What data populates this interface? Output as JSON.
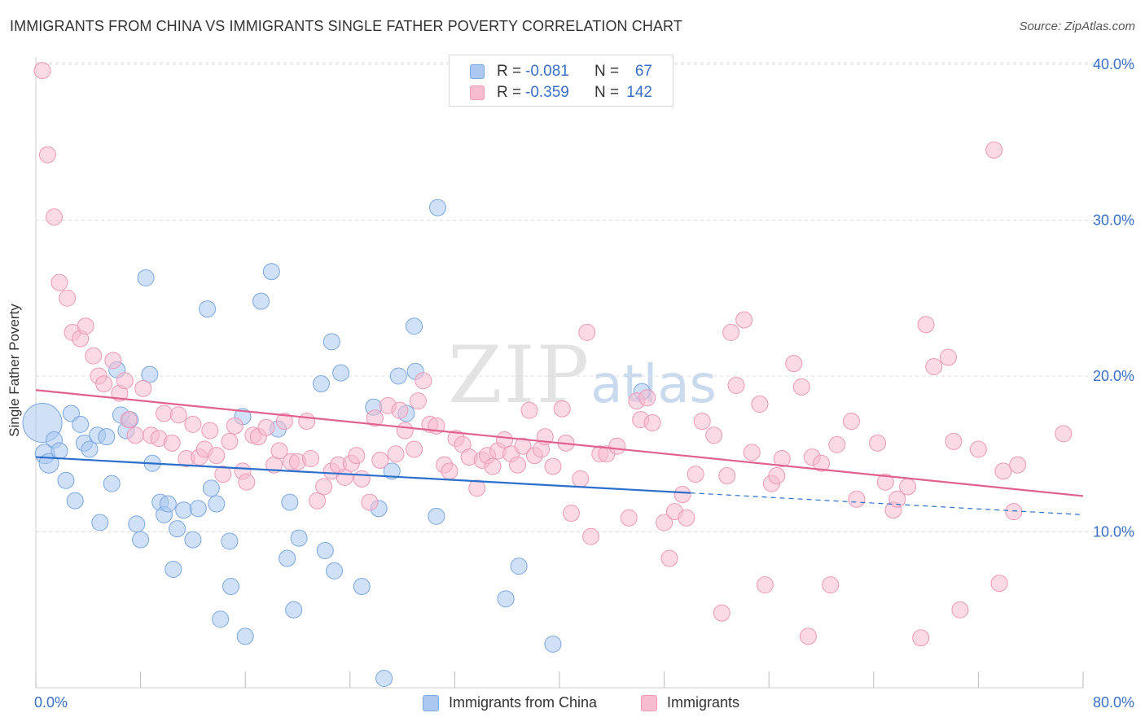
{
  "title": "IMMIGRANTS FROM CHINA VS IMMIGRANTS SINGLE FATHER POVERTY CORRELATION CHART",
  "source": "Source: ZipAtlas.com",
  "watermark": {
    "zip": "ZIP",
    "atlas": "atlas"
  },
  "legend": {
    "rows": [
      {
        "r_label": "R =",
        "r_value": "-0.081",
        "n_label": "N =",
        "n_value": "67"
      },
      {
        "r_label": "R =",
        "r_value": "-0.359",
        "n_label": "N =",
        "n_value": "142"
      }
    ]
  },
  "bottom_legend": [
    "Immigrants from China",
    "Immigrants"
  ],
  "colors": {
    "china_fill": "#aac8f0",
    "china_stroke": "#7aa6e0",
    "china_line": "#2b6fcc",
    "imm_fill": "#f7bcd0",
    "imm_stroke": "#ec98b6",
    "imm_line": "#e06090",
    "tick_label": "#3a6fc7",
    "grid": "#dddddd"
  },
  "chart_data": {
    "type": "scatter",
    "title": "IMMIGRANTS FROM CHINA VS IMMIGRANTS SINGLE FATHER POVERTY CORRELATION CHART",
    "xlabel": "",
    "ylabel": "Single Father Poverty",
    "xlim": [
      0,
      80
    ],
    "ylim": [
      0,
      42
    ],
    "x_tick_labels": [
      {
        "value": 0,
        "label": "0.0%"
      },
      {
        "value": 80,
        "label": "80.0%"
      }
    ],
    "x_ticks": [
      0,
      8,
      16,
      24,
      32,
      40,
      48,
      56,
      64,
      72,
      80
    ],
    "y_ticks": [
      {
        "value": 10,
        "label": "10.0%"
      },
      {
        "value": 20,
        "label": "20.0%"
      },
      {
        "value": 30,
        "label": "30.0%"
      },
      {
        "value": 40,
        "label": "40.0%"
      }
    ],
    "grid": true,
    "series": [
      {
        "name": "Immigrants from China",
        "r": -0.081,
        "n": 67,
        "trend": {
          "x0": 0,
          "y0": 14.8,
          "x1": 50,
          "y1": 12.5,
          "dash_to_x": 80,
          "dash_to_y": 11.1
        },
        "points": [
          [
            0.5,
            17.0,
            24
          ],
          [
            0.7,
            15.0,
            12
          ],
          [
            1.0,
            14.4,
            12
          ],
          [
            1.4,
            15.9,
            10
          ],
          [
            1.8,
            15.2,
            10
          ],
          [
            2.3,
            13.3,
            10
          ],
          [
            2.7,
            17.6,
            10
          ],
          [
            3.0,
            12.0,
            10
          ],
          [
            3.4,
            16.9,
            10
          ],
          [
            3.7,
            15.7,
            10
          ],
          [
            4.1,
            15.3,
            10
          ],
          [
            4.7,
            16.2,
            10
          ],
          [
            4.9,
            10.6,
            10
          ],
          [
            5.4,
            16.1,
            10
          ],
          [
            5.8,
            13.1,
            10
          ],
          [
            6.2,
            20.4,
            10
          ],
          [
            6.5,
            17.5,
            10
          ],
          [
            6.9,
            16.5,
            10
          ],
          [
            7.2,
            17.2,
            10
          ],
          [
            7.7,
            10.5,
            10
          ],
          [
            8.0,
            9.5,
            10
          ],
          [
            8.4,
            26.3,
            10
          ],
          [
            8.7,
            20.1,
            10
          ],
          [
            8.9,
            14.4,
            10
          ],
          [
            9.5,
            11.9,
            10
          ],
          [
            9.8,
            11.1,
            10
          ],
          [
            10.1,
            11.8,
            10
          ],
          [
            10.5,
            7.6,
            10
          ],
          [
            10.8,
            10.2,
            10
          ],
          [
            11.3,
            11.4,
            10
          ],
          [
            12.0,
            9.5,
            10
          ],
          [
            12.4,
            11.5,
            10
          ],
          [
            13.1,
            24.3,
            10
          ],
          [
            13.4,
            12.8,
            10
          ],
          [
            13.8,
            11.8,
            10
          ],
          [
            14.1,
            4.4,
            10
          ],
          [
            14.8,
            9.4,
            10
          ],
          [
            14.9,
            6.5,
            10
          ],
          [
            15.8,
            17.4,
            10
          ],
          [
            16.0,
            3.3,
            10
          ],
          [
            17.2,
            24.8,
            10
          ],
          [
            18.0,
            26.7,
            10
          ],
          [
            18.5,
            16.6,
            10
          ],
          [
            19.2,
            8.3,
            10
          ],
          [
            19.4,
            11.9,
            10
          ],
          [
            19.7,
            5.0,
            10
          ],
          [
            20.1,
            9.6,
            10
          ],
          [
            21.8,
            19.5,
            10
          ],
          [
            22.1,
            8.8,
            10
          ],
          [
            22.6,
            22.2,
            10
          ],
          [
            22.8,
            7.5,
            10
          ],
          [
            23.3,
            20.2,
            10
          ],
          [
            24.9,
            6.5,
            10
          ],
          [
            25.8,
            18.0,
            10
          ],
          [
            26.2,
            11.5,
            10
          ],
          [
            26.6,
            0.6,
            10
          ],
          [
            27.2,
            13.9,
            10
          ],
          [
            27.7,
            20.0,
            10
          ],
          [
            28.3,
            17.6,
            10
          ],
          [
            28.9,
            23.2,
            10
          ],
          [
            29.0,
            20.3,
            10
          ],
          [
            30.6,
            11.0,
            10
          ],
          [
            30.7,
            30.8,
            10
          ],
          [
            35.9,
            5.7,
            10
          ],
          [
            36.9,
            7.8,
            10
          ],
          [
            39.5,
            2.8,
            10
          ],
          [
            46.3,
            19.0,
            10
          ]
        ]
      },
      {
        "name": "Immigrants",
        "r": -0.359,
        "n": 142,
        "trend": {
          "x0": 0,
          "y0": 19.1,
          "x1": 80,
          "y1": 12.3
        },
        "points": [
          [
            0.5,
            39.6
          ],
          [
            0.9,
            34.2
          ],
          [
            1.4,
            30.2
          ],
          [
            1.8,
            26.0
          ],
          [
            2.4,
            25.0
          ],
          [
            2.8,
            22.8
          ],
          [
            3.4,
            22.4
          ],
          [
            3.8,
            23.2
          ],
          [
            4.4,
            21.3
          ],
          [
            4.8,
            20.0
          ],
          [
            5.2,
            19.5
          ],
          [
            5.9,
            21.0
          ],
          [
            6.4,
            18.9
          ],
          [
            6.8,
            19.7
          ],
          [
            7.1,
            17.2
          ],
          [
            7.6,
            16.2
          ],
          [
            8.2,
            19.2
          ],
          [
            8.8,
            16.2
          ],
          [
            9.4,
            16.0
          ],
          [
            9.8,
            17.6
          ],
          [
            10.4,
            15.7
          ],
          [
            10.9,
            17.5
          ],
          [
            11.5,
            14.7
          ],
          [
            12.0,
            16.9
          ],
          [
            12.5,
            14.8
          ],
          [
            12.9,
            15.3
          ],
          [
            13.3,
            16.5
          ],
          [
            13.8,
            14.9
          ],
          [
            14.3,
            13.7
          ],
          [
            14.8,
            15.8
          ],
          [
            15.2,
            16.8
          ],
          [
            15.8,
            13.9
          ],
          [
            16.1,
            13.2
          ],
          [
            16.6,
            16.2
          ],
          [
            17.0,
            16.1
          ],
          [
            17.6,
            16.7
          ],
          [
            18.2,
            14.3
          ],
          [
            18.6,
            15.2
          ],
          [
            19.0,
            17.1
          ],
          [
            19.5,
            14.5
          ],
          [
            20.0,
            14.5
          ],
          [
            20.7,
            17.1
          ],
          [
            21.0,
            14.7
          ],
          [
            21.5,
            12.0
          ],
          [
            22.0,
            12.9
          ],
          [
            22.6,
            13.9
          ],
          [
            23.1,
            14.3
          ],
          [
            23.6,
            13.5
          ],
          [
            24.1,
            14.4
          ],
          [
            24.5,
            14.9
          ],
          [
            24.9,
            13.4
          ],
          [
            25.5,
            11.9
          ],
          [
            25.9,
            17.3
          ],
          [
            26.3,
            14.6
          ],
          [
            26.9,
            18.1
          ],
          [
            27.5,
            15.0
          ],
          [
            27.8,
            17.8
          ],
          [
            28.2,
            16.5
          ],
          [
            28.9,
            15.3
          ],
          [
            29.2,
            18.4
          ],
          [
            29.6,
            19.7
          ],
          [
            30.1,
            16.9
          ],
          [
            30.6,
            16.8
          ],
          [
            31.2,
            14.3
          ],
          [
            31.6,
            13.9
          ],
          [
            32.1,
            16.0
          ],
          [
            32.6,
            15.6
          ],
          [
            33.1,
            14.8
          ],
          [
            33.7,
            12.8
          ],
          [
            34.1,
            14.6
          ],
          [
            34.5,
            14.9
          ],
          [
            34.9,
            14.2
          ],
          [
            35.3,
            15.2
          ],
          [
            35.8,
            15.9
          ],
          [
            36.3,
            15.0
          ],
          [
            36.8,
            14.3
          ],
          [
            37.2,
            15.5
          ],
          [
            37.7,
            17.8
          ],
          [
            38.1,
            14.9
          ],
          [
            38.6,
            15.3
          ],
          [
            38.9,
            16.1
          ],
          [
            39.5,
            14.2
          ],
          [
            40.2,
            17.9
          ],
          [
            40.5,
            15.7
          ],
          [
            40.9,
            11.2
          ],
          [
            41.6,
            13.4
          ],
          [
            42.1,
            22.8
          ],
          [
            42.4,
            9.7
          ],
          [
            43.1,
            15.0
          ],
          [
            43.6,
            15.0
          ],
          [
            44.4,
            15.5
          ],
          [
            45.3,
            10.9
          ],
          [
            45.9,
            18.4
          ],
          [
            46.2,
            17.2
          ],
          [
            46.7,
            18.6
          ],
          [
            47.1,
            17.0
          ],
          [
            48.0,
            10.6
          ],
          [
            48.4,
            8.3
          ],
          [
            48.8,
            11.3
          ],
          [
            49.4,
            12.4
          ],
          [
            49.7,
            10.9
          ],
          [
            50.4,
            13.7
          ],
          [
            50.9,
            17.1
          ],
          [
            51.8,
            16.2
          ],
          [
            52.4,
            4.8
          ],
          [
            52.8,
            13.6
          ],
          [
            53.1,
            22.8
          ],
          [
            53.5,
            19.4
          ],
          [
            54.1,
            23.6
          ],
          [
            54.7,
            15.1
          ],
          [
            55.3,
            18.2
          ],
          [
            55.7,
            6.6
          ],
          [
            56.2,
            13.1
          ],
          [
            56.6,
            13.6
          ],
          [
            57.0,
            14.7
          ],
          [
            57.9,
            20.8
          ],
          [
            58.5,
            19.3
          ],
          [
            59.0,
            3.3
          ],
          [
            59.3,
            14.8
          ],
          [
            60.0,
            14.4
          ],
          [
            60.7,
            6.6
          ],
          [
            61.2,
            15.6
          ],
          [
            62.3,
            17.1
          ],
          [
            62.7,
            12.1
          ],
          [
            64.3,
            15.7
          ],
          [
            64.9,
            13.2
          ],
          [
            65.5,
            11.4
          ],
          [
            65.8,
            12.1
          ],
          [
            66.6,
            12.9
          ],
          [
            67.6,
            3.2
          ],
          [
            68.0,
            23.3
          ],
          [
            68.6,
            20.6
          ],
          [
            69.7,
            21.2
          ],
          [
            70.1,
            15.8
          ],
          [
            70.6,
            5.0
          ],
          [
            72.0,
            15.3
          ],
          [
            73.2,
            34.5
          ],
          [
            73.6,
            6.7
          ],
          [
            73.9,
            13.9
          ],
          [
            74.7,
            11.3
          ],
          [
            75.0,
            14.3
          ],
          [
            78.5,
            16.3
          ]
        ]
      }
    ]
  }
}
